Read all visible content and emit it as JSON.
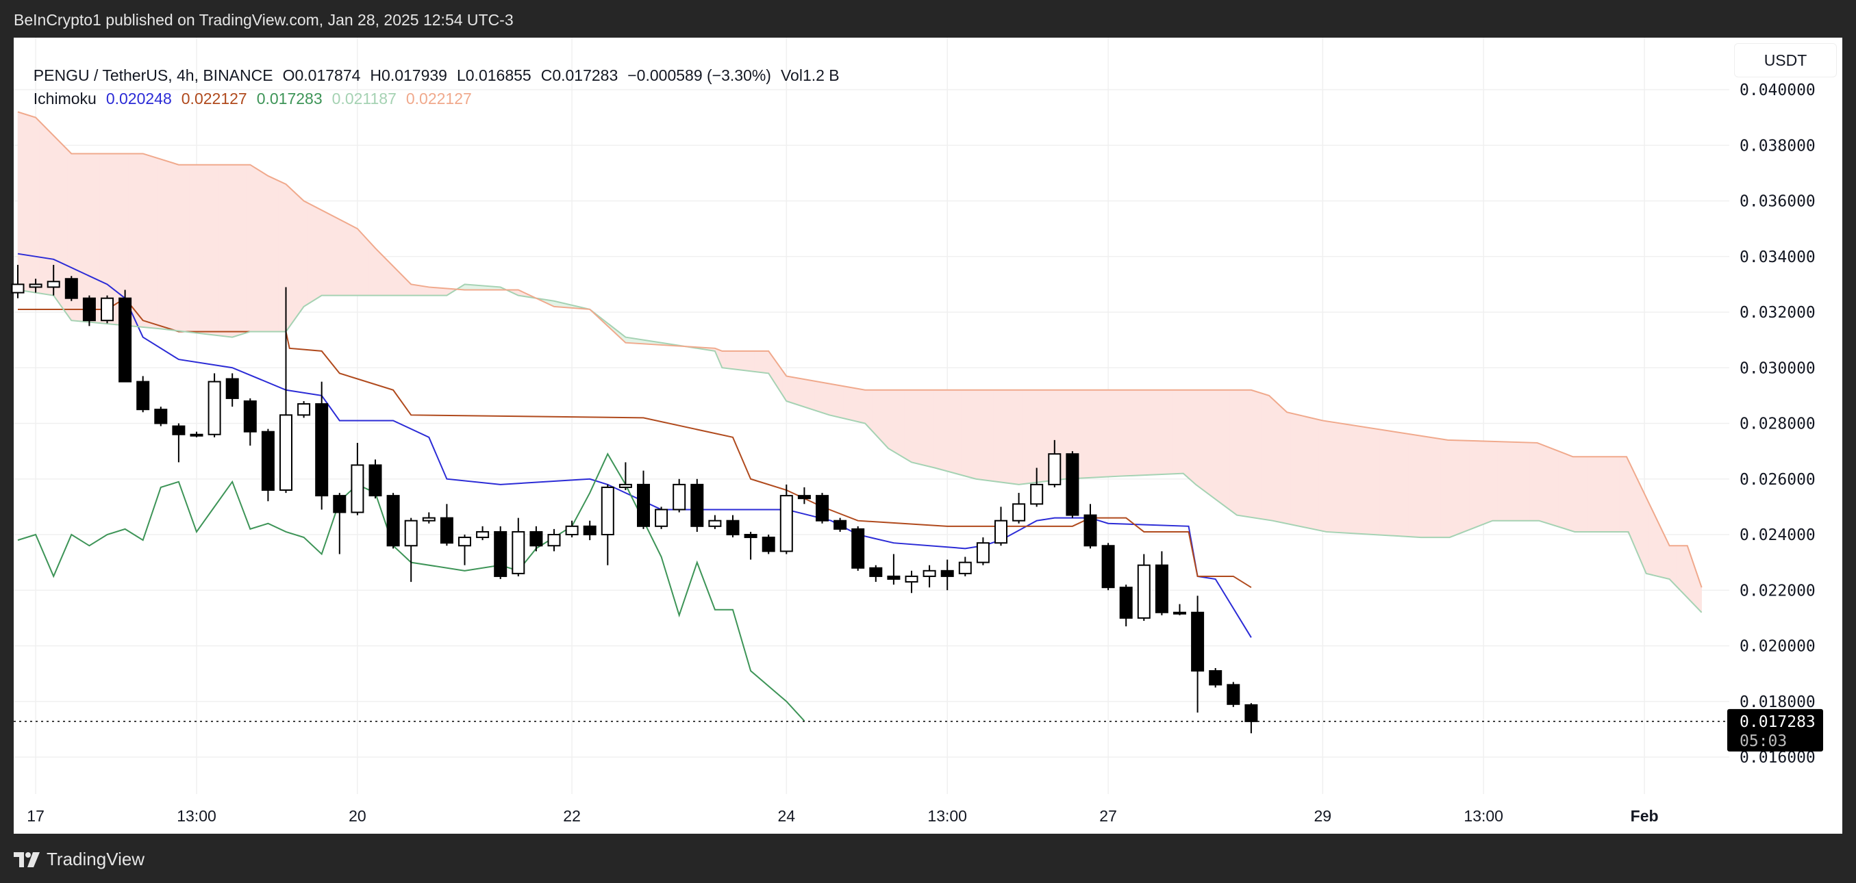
{
  "header": {
    "published": "BeInCrypto1 published on TradingView.com, Jan 28, 2025 12:54 UTC-3"
  },
  "legend": {
    "symbol": "PENGU / TetherUS, 4h, BINANCE",
    "open": "O0.017874",
    "high": "H0.017939",
    "low": "L0.016855",
    "close": "C0.017283",
    "change": "−0.000589 (−3.30%)",
    "volume": "Vol1.2 B",
    "indicator": "Ichimoku",
    "values": [
      {
        "text": "0.020248",
        "color": "#2b2bd6"
      },
      {
        "text": "0.022127",
        "color": "#b04a1d"
      },
      {
        "text": "0.017283",
        "color": "#3d9457"
      },
      {
        "text": "0.021187",
        "color": "#a5d2b3"
      },
      {
        "text": "0.022127",
        "color": "#f0a98c"
      }
    ]
  },
  "currency_button": "USDT",
  "footer": {
    "logo": "TradingView"
  },
  "chart_data": {
    "type": "candlestick",
    "title": "PENGU / TetherUS, 4h, BINANCE",
    "ylim": [
      0.015,
      0.0412
    ],
    "yticks": [
      "0.040000",
      "0.038000",
      "0.036000",
      "0.034000",
      "0.032000",
      "0.030000",
      "0.028000",
      "0.026000",
      "0.024000",
      "0.022000",
      "0.020000",
      "0.018000",
      "0.016000"
    ],
    "ytick_values": [
      0.04,
      0.038,
      0.036,
      0.034,
      0.032,
      0.03,
      0.028,
      0.026,
      0.024,
      0.022,
      0.02,
      0.018,
      0.016
    ],
    "xticks": [
      {
        "label": "17",
        "index": 1
      },
      {
        "label": "13:00",
        "index": 10
      },
      {
        "label": "20",
        "index": 19
      },
      {
        "label": "22",
        "index": 31
      },
      {
        "label": "24",
        "index": 43
      },
      {
        "label": "13:00",
        "index": 52
      },
      {
        "label": "27",
        "index": 61
      },
      {
        "label": "29",
        "index": 73
      },
      {
        "label": "13:00",
        "index": 82
      },
      {
        "label": "Feb",
        "index": 91
      }
    ],
    "last_price": {
      "value": 0.017283,
      "label": "0.017283",
      "countdown": "05:03"
    },
    "candles": [
      [
        0.0327,
        0.0337,
        0.0325,
        0.033
      ],
      [
        0.0329,
        0.0332,
        0.0327,
        0.033
      ],
      [
        0.0329,
        0.0337,
        0.0326,
        0.0331
      ],
      [
        0.0332,
        0.0333,
        0.0324,
        0.0325
      ],
      [
        0.0325,
        0.0326,
        0.0315,
        0.0317
      ],
      [
        0.0317,
        0.0326,
        0.0316,
        0.0325
      ],
      [
        0.0325,
        0.0328,
        0.0295,
        0.0295
      ],
      [
        0.0295,
        0.0297,
        0.0284,
        0.0285
      ],
      [
        0.0285,
        0.0286,
        0.0279,
        0.028
      ],
      [
        0.0279,
        0.028,
        0.0266,
        0.0276
      ],
      [
        0.0276,
        0.0277,
        0.0275,
        0.0276
      ],
      [
        0.0276,
        0.0298,
        0.0275,
        0.0295
      ],
      [
        0.0296,
        0.0298,
        0.0286,
        0.0289
      ],
      [
        0.0288,
        0.0289,
        0.0272,
        0.0277
      ],
      [
        0.0277,
        0.0278,
        0.0252,
        0.0256
      ],
      [
        0.0256,
        0.0329,
        0.0255,
        0.0283
      ],
      [
        0.0283,
        0.0288,
        0.0282,
        0.0287
      ],
      [
        0.0287,
        0.0295,
        0.0249,
        0.0254
      ],
      [
        0.0254,
        0.0255,
        0.0233,
        0.0248
      ],
      [
        0.0248,
        0.0273,
        0.0247,
        0.0265
      ],
      [
        0.0265,
        0.0267,
        0.0253,
        0.0254
      ],
      [
        0.0254,
        0.0255,
        0.0235,
        0.0236
      ],
      [
        0.0236,
        0.0246,
        0.0223,
        0.0245
      ],
      [
        0.0245,
        0.0248,
        0.0244,
        0.0246
      ],
      [
        0.0246,
        0.0251,
        0.0236,
        0.0237
      ],
      [
        0.0236,
        0.024,
        0.0229,
        0.0239
      ],
      [
        0.0239,
        0.0243,
        0.0238,
        0.0241
      ],
      [
        0.0241,
        0.0243,
        0.0224,
        0.0225
      ],
      [
        0.0226,
        0.0246,
        0.0225,
        0.0241
      ],
      [
        0.0241,
        0.0243,
        0.0234,
        0.0236
      ],
      [
        0.0236,
        0.0242,
        0.0234,
        0.024
      ],
      [
        0.024,
        0.0245,
        0.0239,
        0.0243
      ],
      [
        0.0243,
        0.0245,
        0.0238,
        0.024
      ],
      [
        0.024,
        0.0258,
        0.0229,
        0.0257
      ],
      [
        0.0257,
        0.0266,
        0.0256,
        0.0258
      ],
      [
        0.0258,
        0.0263,
        0.0242,
        0.0243
      ],
      [
        0.0243,
        0.025,
        0.0242,
        0.0249
      ],
      [
        0.0249,
        0.026,
        0.0248,
        0.0258
      ],
      [
        0.0258,
        0.026,
        0.0241,
        0.0243
      ],
      [
        0.0243,
        0.0247,
        0.0242,
        0.0245
      ],
      [
        0.0245,
        0.0247,
        0.0239,
        0.024
      ],
      [
        0.024,
        0.0241,
        0.0231,
        0.0239
      ],
      [
        0.0239,
        0.024,
        0.0233,
        0.0234
      ],
      [
        0.0234,
        0.0258,
        0.0233,
        0.0254
      ],
      [
        0.0254,
        0.0257,
        0.0251,
        0.0253
      ],
      [
        0.0254,
        0.0255,
        0.0244,
        0.0245
      ],
      [
        0.0245,
        0.0246,
        0.0241,
        0.0242
      ],
      [
        0.0242,
        0.0243,
        0.0227,
        0.0228
      ],
      [
        0.0228,
        0.0229,
        0.0223,
        0.0225
      ],
      [
        0.0225,
        0.0233,
        0.0222,
        0.0224
      ],
      [
        0.0223,
        0.0227,
        0.0219,
        0.0225
      ],
      [
        0.0225,
        0.0229,
        0.0221,
        0.0227
      ],
      [
        0.0227,
        0.0231,
        0.022,
        0.0225
      ],
      [
        0.0226,
        0.0232,
        0.0225,
        0.023
      ],
      [
        0.023,
        0.0239,
        0.0229,
        0.0237
      ],
      [
        0.0237,
        0.025,
        0.0236,
        0.0245
      ],
      [
        0.0245,
        0.0255,
        0.0244,
        0.0251
      ],
      [
        0.0251,
        0.0264,
        0.025,
        0.0258
      ],
      [
        0.0258,
        0.0274,
        0.0257,
        0.0269
      ],
      [
        0.0269,
        0.027,
        0.0246,
        0.0247
      ],
      [
        0.0247,
        0.0251,
        0.0235,
        0.0236
      ],
      [
        0.0236,
        0.0237,
        0.022,
        0.0221
      ],
      [
        0.0221,
        0.0222,
        0.0207,
        0.021
      ],
      [
        0.021,
        0.0233,
        0.0209,
        0.0229
      ],
      [
        0.0229,
        0.0234,
        0.0211,
        0.0212
      ],
      [
        0.0212,
        0.0215,
        0.0211,
        0.0212
      ],
      [
        0.0212,
        0.0218,
        0.0176,
        0.0191
      ],
      [
        0.0191,
        0.0192,
        0.0185,
        0.0186
      ],
      [
        0.0186,
        0.0187,
        0.0178,
        0.0179
      ],
      [
        0.017874,
        0.017939,
        0.016855,
        0.017283
      ]
    ],
    "candle_format": [
      "open",
      "high",
      "low",
      "close"
    ],
    "series": [
      {
        "name": "Conversion Line",
        "color": "#2b2bd6",
        "points": [
          [
            0,
            0.0341
          ],
          [
            2,
            0.0339
          ],
          [
            5,
            0.033
          ],
          [
            6,
            0.0325
          ],
          [
            7,
            0.0311
          ],
          [
            9,
            0.0303
          ],
          [
            12,
            0.03
          ],
          [
            15,
            0.0292
          ],
          [
            17,
            0.029
          ],
          [
            18,
            0.0281
          ],
          [
            21,
            0.0281
          ],
          [
            23,
            0.0275
          ],
          [
            24,
            0.026
          ],
          [
            27,
            0.0258
          ],
          [
            32,
            0.026
          ],
          [
            33,
            0.0258
          ],
          [
            36,
            0.0249
          ],
          [
            43,
            0.0249
          ],
          [
            45.5,
            0.0245
          ],
          [
            47,
            0.024
          ],
          [
            49,
            0.0237
          ],
          [
            53,
            0.0235
          ],
          [
            54,
            0.0236
          ],
          [
            55,
            0.0238
          ],
          [
            57,
            0.0245
          ],
          [
            58,
            0.0246
          ],
          [
            60,
            0.0246
          ],
          [
            61,
            0.0244
          ],
          [
            65.5,
            0.0243
          ],
          [
            66,
            0.0225
          ],
          [
            67,
            0.0224
          ],
          [
            69,
            0.0203
          ]
        ]
      },
      {
        "name": "Base Line",
        "color": "#b04a1d",
        "points": [
          [
            0,
            0.0321
          ],
          [
            5,
            0.0321
          ],
          [
            6,
            0.0325
          ],
          [
            7,
            0.0317
          ],
          [
            9,
            0.0313
          ],
          [
            15,
            0.0313
          ],
          [
            15.2,
            0.0307
          ],
          [
            17,
            0.0306
          ],
          [
            18,
            0.0298
          ],
          [
            19,
            0.0296
          ],
          [
            21,
            0.0292
          ],
          [
            22,
            0.0283
          ],
          [
            35,
            0.0282
          ],
          [
            40,
            0.0275
          ],
          [
            41,
            0.026
          ],
          [
            43,
            0.0256
          ],
          [
            45,
            0.025
          ],
          [
            47,
            0.0245
          ],
          [
            52,
            0.0243
          ],
          [
            59,
            0.0243
          ],
          [
            60,
            0.0246
          ],
          [
            62,
            0.0246
          ],
          [
            63,
            0.0241
          ],
          [
            65.5,
            0.0241
          ],
          [
            66,
            0.0225
          ],
          [
            68,
            0.0225
          ],
          [
            69,
            0.0221
          ]
        ]
      },
      {
        "name": "Lagging Span",
        "color": "#3d9457",
        "points": [
          [
            0,
            0.0238
          ],
          [
            1,
            0.024
          ],
          [
            2,
            0.0225
          ],
          [
            3,
            0.024
          ],
          [
            4,
            0.0236
          ],
          [
            5,
            0.024
          ],
          [
            6,
            0.0242
          ],
          [
            7,
            0.0238
          ],
          [
            8,
            0.0257
          ],
          [
            9,
            0.0259
          ],
          [
            10,
            0.0241
          ],
          [
            11,
            0.025
          ],
          [
            12,
            0.0259
          ],
          [
            13,
            0.0242
          ],
          [
            14,
            0.0244
          ],
          [
            15,
            0.0241
          ],
          [
            16,
            0.0239
          ],
          [
            17,
            0.0233
          ],
          [
            18,
            0.0252
          ],
          [
            19,
            0.0258
          ],
          [
            20,
            0.0255
          ],
          [
            21,
            0.0236
          ],
          [
            22,
            0.023
          ],
          [
            25,
            0.0227
          ],
          [
            27,
            0.0229
          ],
          [
            28,
            0.0227
          ],
          [
            29,
            0.0235
          ],
          [
            31,
            0.0243
          ],
          [
            32,
            0.0255
          ],
          [
            33,
            0.0269
          ],
          [
            34,
            0.0258
          ],
          [
            35,
            0.0245
          ],
          [
            36,
            0.0232
          ],
          [
            37,
            0.0211
          ],
          [
            38,
            0.023
          ],
          [
            39,
            0.0213
          ],
          [
            40,
            0.0213
          ],
          [
            41,
            0.0191
          ],
          [
            43,
            0.018
          ],
          [
            44,
            0.0173
          ]
        ]
      },
      {
        "name": "Leading Span A",
        "color": "#a5d2b3",
        "points": [
          [
            0,
            0.0328
          ],
          [
            2,
            0.0326
          ],
          [
            3,
            0.0317
          ],
          [
            8,
            0.0314
          ],
          [
            12,
            0.0311
          ],
          [
            13,
            0.0313
          ],
          [
            15,
            0.0313
          ],
          [
            16,
            0.0322
          ],
          [
            17,
            0.0326
          ],
          [
            24,
            0.0326
          ],
          [
            25,
            0.033
          ],
          [
            27,
            0.0329
          ],
          [
            28,
            0.0326
          ],
          [
            30,
            0.0324
          ],
          [
            32,
            0.0321
          ],
          [
            34,
            0.0311
          ],
          [
            39,
            0.0306
          ],
          [
            39.4,
            0.03
          ],
          [
            42,
            0.0298
          ],
          [
            43,
            0.0288
          ],
          [
            45.4,
            0.0283
          ],
          [
            47.4,
            0.028
          ],
          [
            48.7,
            0.0271
          ],
          [
            50,
            0.0266
          ],
          [
            51.3,
            0.0264
          ],
          [
            53.6,
            0.026
          ],
          [
            56,
            0.0258
          ],
          [
            58.6,
            0.026
          ],
          [
            61.6,
            0.0261
          ],
          [
            65.2,
            0.0262
          ],
          [
            65.9,
            0.0258
          ],
          [
            68.2,
            0.0247
          ],
          [
            70.2,
            0.0245
          ],
          [
            73.2,
            0.0241
          ],
          [
            78.5,
            0.0239
          ],
          [
            80.1,
            0.0239
          ],
          [
            82.5,
            0.0245
          ],
          [
            85.1,
            0.0245
          ],
          [
            87.1,
            0.0241
          ],
          [
            90.1,
            0.0241
          ],
          [
            91.1,
            0.0226
          ],
          [
            92.4,
            0.0224
          ],
          [
            94.2,
            0.0212
          ]
        ]
      },
      {
        "name": "Leading Span B",
        "color": "#f0a98c",
        "points": [
          [
            0,
            0.0392
          ],
          [
            1,
            0.039
          ],
          [
            3,
            0.0377
          ],
          [
            7,
            0.0377
          ],
          [
            9,
            0.0373
          ],
          [
            13,
            0.0373
          ],
          [
            14,
            0.0369
          ],
          [
            15,
            0.0366
          ],
          [
            16,
            0.036
          ],
          [
            19,
            0.035
          ],
          [
            20,
            0.0343
          ],
          [
            22,
            0.033
          ],
          [
            23,
            0.0329
          ],
          [
            25,
            0.0328
          ],
          [
            28,
            0.0328
          ],
          [
            30,
            0.0322
          ],
          [
            32,
            0.0321
          ],
          [
            34,
            0.0309
          ],
          [
            39,
            0.0307
          ],
          [
            39.4,
            0.0306
          ],
          [
            42,
            0.0306
          ],
          [
            43,
            0.0297
          ],
          [
            47.4,
            0.0292
          ],
          [
            69,
            0.0292
          ],
          [
            70,
            0.029
          ],
          [
            71,
            0.0284
          ],
          [
            73,
            0.0281
          ],
          [
            80,
            0.0274
          ],
          [
            85,
            0.0273
          ],
          [
            87,
            0.0268
          ],
          [
            90,
            0.0268
          ],
          [
            92.4,
            0.0236
          ],
          [
            93.4,
            0.0236
          ],
          [
            94.2,
            0.0221
          ]
        ]
      }
    ],
    "cloud_colors": {
      "bull": "#e3f3e7",
      "bear": "#fde5e2"
    },
    "candle_colors": {
      "up": "#ffffff",
      "down": "#000000"
    },
    "grid": true
  }
}
